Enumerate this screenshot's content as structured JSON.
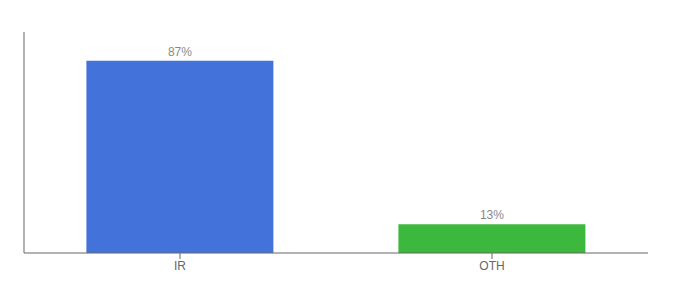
{
  "chart_data": {
    "type": "bar",
    "categories": [
      "IR",
      "OTH"
    ],
    "values": [
      87,
      13
    ],
    "value_labels": [
      "87%",
      "13%"
    ],
    "colors": [
      "#4472db",
      "#3cb83c"
    ],
    "ylim": [
      0,
      100
    ],
    "data_labels": true,
    "tick_labels": "x",
    "grid": false
  }
}
